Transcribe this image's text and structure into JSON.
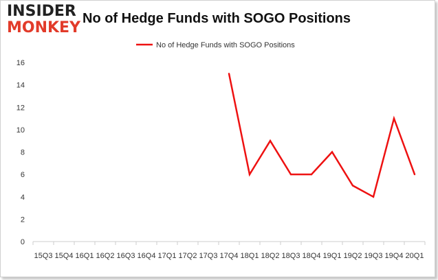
{
  "logo": {
    "line1": "INSIDER",
    "line2": "MONKEY"
  },
  "chart_data": {
    "type": "line",
    "title": "No of Hedge Funds with SOGO Positions",
    "xlabel": "",
    "ylabel": "",
    "ylim": [
      0,
      16
    ],
    "yticks": [
      0,
      2,
      4,
      6,
      8,
      10,
      12,
      14,
      16
    ],
    "grid": false,
    "legend": "top-center",
    "categories": [
      "15Q3",
      "15Q4",
      "16Q1",
      "16Q2",
      "16Q3",
      "16Q4",
      "17Q1",
      "17Q2",
      "17Q3",
      "17Q4",
      "18Q1",
      "18Q2",
      "18Q3",
      "18Q4",
      "19Q1",
      "19Q2",
      "19Q3",
      "19Q4",
      "20Q1"
    ],
    "series": [
      {
        "name": "No of Hedge Funds with SOGO Positions",
        "color": "#ee1111",
        "values": [
          null,
          null,
          null,
          null,
          null,
          null,
          null,
          null,
          null,
          15,
          6,
          9,
          6,
          6,
          8,
          5,
          4,
          11,
          6
        ]
      }
    ]
  }
}
